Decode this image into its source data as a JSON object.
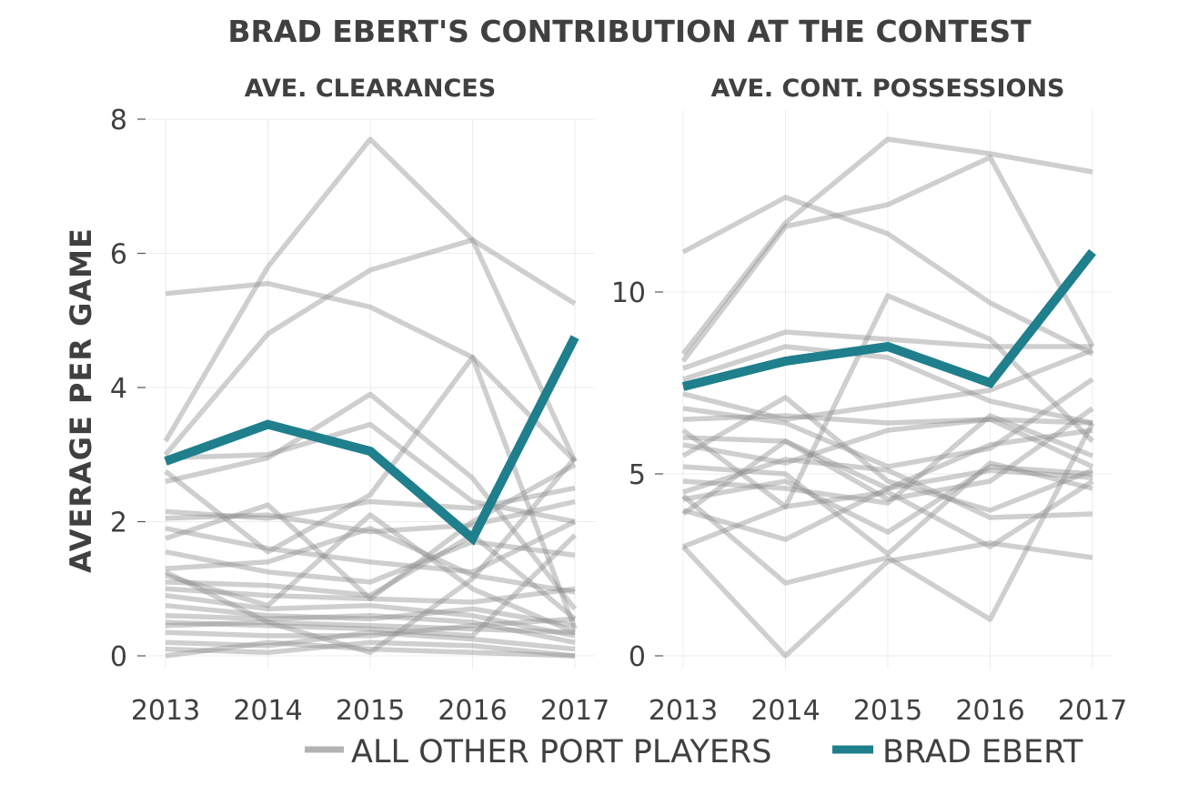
{
  "title": "BRAD EBERT'S CONTRIBUTION AT THE CONTEST",
  "y_axis_label": "AVERAGE PER GAME",
  "legend": {
    "position": "bottom",
    "items": [
      {
        "label": "ALL OTHER PORT PLAYERS",
        "color": "#b3b3b3"
      },
      {
        "label": "BRAD EBERT",
        "color": "#1f7f8c"
      }
    ]
  },
  "colors": {
    "highlight": "#1f7f8c",
    "others": "#8c8c8c",
    "text": "#404040",
    "grid": "#ececec"
  },
  "chart_data": [
    {
      "type": "line",
      "title": "AVE. CLEARANCES",
      "x": [
        2013,
        2014,
        2015,
        2016,
        2017
      ],
      "ylim": [
        0,
        8
      ],
      "yticks": [
        0,
        2,
        4,
        6,
        8
      ],
      "grid": true,
      "series": [
        {
          "name": "BRAD EBERT",
          "highlight": true,
          "values": [
            2.9,
            3.45,
            3.05,
            1.75,
            4.75
          ]
        },
        {
          "values": [
            5.4,
            5.55,
            5.2,
            4.45,
            2.9
          ]
        },
        {
          "values": [
            3.2,
            5.8,
            7.7,
            6.2,
            2.9
          ]
        },
        {
          "values": [
            3.0,
            4.8,
            5.75,
            6.2,
            5.25
          ]
        },
        {
          "values": [
            2.95,
            3.0,
            3.45,
            2.3,
            2.0
          ]
        },
        {
          "values": [
            2.6,
            2.95,
            3.9,
            2.65,
            0.7
          ]
        },
        {
          "values": [
            2.75,
            1.55,
            2.4,
            4.45,
            0.4
          ]
        },
        {
          "values": [
            2.15,
            2.05,
            2.3,
            2.2,
            2.5
          ]
        },
        {
          "values": [
            2.05,
            2.1,
            1.85,
            1.95,
            2.3
          ]
        },
        {
          "values": [
            1.9,
            1.6,
            1.4,
            1.25,
            2.0
          ]
        },
        {
          "values": [
            1.75,
            2.25,
            0.85,
            2.0,
            2.85
          ]
        },
        {
          "values": [
            1.55,
            1.25,
            1.1,
            1.7,
            1.5
          ]
        },
        {
          "values": [
            1.3,
            1.4,
            1.9,
            1.2,
            0.95
          ]
        },
        {
          "values": [
            1.2,
            0.75,
            2.1,
            1.0,
            0.35
          ]
        },
        {
          "values": [
            1.1,
            1.05,
            0.9,
            1.8,
            0.55
          ]
        },
        {
          "values": [
            1.0,
            0.9,
            0.85,
            0.8,
            1.0
          ]
        },
        {
          "values": [
            0.9,
            0.7,
            0.75,
            0.6,
            0.3
          ]
        },
        {
          "values": [
            0.75,
            0.6,
            0.55,
            0.7,
            0.45
          ]
        },
        {
          "values": [
            0.6,
            0.55,
            0.6,
            0.5,
            0.2
          ]
        },
        {
          "values": [
            0.45,
            0.5,
            0.45,
            0.4,
            0.35
          ]
        },
        {
          "values": [
            0.35,
            0.3,
            0.3,
            0.45,
            0.55
          ]
        },
        {
          "values": [
            0.2,
            0.15,
            0.35,
            0.25,
            0.1
          ]
        },
        {
          "values": [
            0.1,
            0.05,
            0.2,
            0.15,
            0.0
          ]
        },
        {
          "values": [
            0.0,
            0.2,
            0.1,
            0.05,
            0.0
          ]
        },
        {
          "values": [
            1.25,
            0.5,
            0.05,
            1.15,
            2.95
          ]
        },
        {
          "values": [
            0.5,
            0.45,
            0.4,
            0.3,
            1.8
          ]
        }
      ]
    },
    {
      "type": "line",
      "title": "AVE. CONT. POSSESSIONS",
      "x": [
        2013,
        2014,
        2015,
        2016,
        2017
      ],
      "ylim": [
        0,
        15
      ],
      "yticks": [
        0,
        5,
        10
      ],
      "grid": true,
      "series": [
        {
          "name": "BRAD EBERT",
          "highlight": true,
          "values": [
            7.4,
            8.1,
            8.5,
            7.5,
            11.1
          ]
        },
        {
          "values": [
            11.1,
            12.6,
            11.6,
            9.7,
            8.3
          ]
        },
        {
          "values": [
            8.3,
            11.9,
            14.2,
            13.8,
            13.3
          ]
        },
        {
          "values": [
            8.1,
            11.8,
            12.4,
            13.7,
            8.5
          ]
        },
        {
          "values": [
            7.9,
            8.9,
            8.7,
            8.5,
            8.5
          ]
        },
        {
          "values": [
            7.6,
            8.5,
            8.2,
            7.0,
            6.4
          ]
        },
        {
          "values": [
            7.2,
            6.5,
            6.9,
            7.3,
            8.4
          ]
        },
        {
          "values": [
            6.8,
            6.4,
            5.2,
            5.7,
            7.6
          ]
        },
        {
          "values": [
            6.5,
            6.6,
            6.4,
            6.5,
            6.4
          ]
        },
        {
          "values": [
            6.2,
            4.1,
            9.9,
            8.7,
            5.9
          ]
        },
        {
          "values": [
            6.0,
            5.9,
            4.6,
            5.1,
            4.9
          ]
        },
        {
          "values": [
            5.8,
            5.3,
            6.2,
            6.5,
            5.2
          ]
        },
        {
          "values": [
            5.5,
            7.1,
            4.8,
            4.0,
            5.1
          ]
        },
        {
          "values": [
            5.2,
            5.0,
            2.8,
            5.3,
            4.6
          ]
        },
        {
          "values": [
            4.8,
            4.6,
            4.2,
            6.6,
            5.5
          ]
        },
        {
          "values": [
            4.5,
            5.4,
            5.1,
            3.8,
            3.9
          ]
        },
        {
          "values": [
            4.3,
            4.8,
            3.4,
            5.2,
            5.0
          ]
        },
        {
          "values": [
            4.0,
            3.2,
            4.6,
            5.8,
            6.2
          ]
        },
        {
          "values": [
            3.9,
            5.9,
            4.3,
            4.8,
            6.8
          ]
        },
        {
          "values": [
            3.0,
            4.1,
            4.5,
            3.0,
            4.8
          ]
        },
        {
          "values": [
            3.0,
            0.0,
            2.6,
            3.1,
            2.7
          ]
        },
        {
          "values": [
            4.4,
            2.0,
            2.7,
            1.0,
            6.4
          ]
        }
      ]
    }
  ]
}
